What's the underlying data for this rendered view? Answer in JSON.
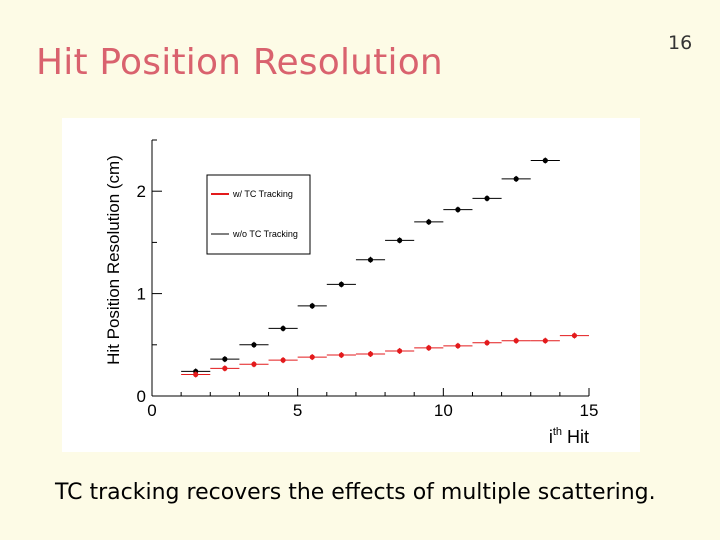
{
  "slide": {
    "title": "Hit Position Resolution",
    "number": "16",
    "caption": "TC tracking recovers the effects of multiple scattering."
  },
  "colors": {
    "title": "#d9626e",
    "with_tc": "#e31a1c",
    "without_tc": "#000000",
    "background": "#fdfbe6"
  },
  "chart_data": {
    "type": "scatter",
    "title": "",
    "xlabel_main": "i",
    "xlabel_sup": "th",
    "xlabel_rest": " Hit",
    "ylabel": "Hit Position Resolution (cm)",
    "xlim": [
      0,
      15
    ],
    "ylim": [
      0,
      2.5
    ],
    "x_ticks": [
      0,
      5,
      10,
      15
    ],
    "y_ticks": [
      0,
      1,
      2
    ],
    "legend_position": "top-left",
    "legend": [
      "w/ TC Tracking",
      "w/o TC Tracking"
    ],
    "series": [
      {
        "name": "w/o TC Tracking",
        "color": "#000000",
        "x": [
          1.5,
          2.5,
          3.5,
          4.5,
          5.5,
          6.5,
          7.5,
          8.5,
          9.5,
          10.5,
          11.5,
          12.5,
          13.5
        ],
        "y": [
          0.24,
          0.36,
          0.5,
          0.66,
          0.88,
          1.09,
          1.33,
          1.52,
          1.7,
          1.82,
          1.93,
          2.12,
          2.3
        ]
      },
      {
        "name": "w/ TC Tracking",
        "color": "#e31a1c",
        "x": [
          1.5,
          2.5,
          3.5,
          4.5,
          5.5,
          6.5,
          7.5,
          8.5,
          9.5,
          10.5,
          11.5,
          12.5,
          13.5,
          14.5
        ],
        "y": [
          0.21,
          0.27,
          0.31,
          0.35,
          0.38,
          0.4,
          0.41,
          0.44,
          0.47,
          0.49,
          0.52,
          0.54,
          0.54,
          0.59
        ]
      }
    ]
  }
}
